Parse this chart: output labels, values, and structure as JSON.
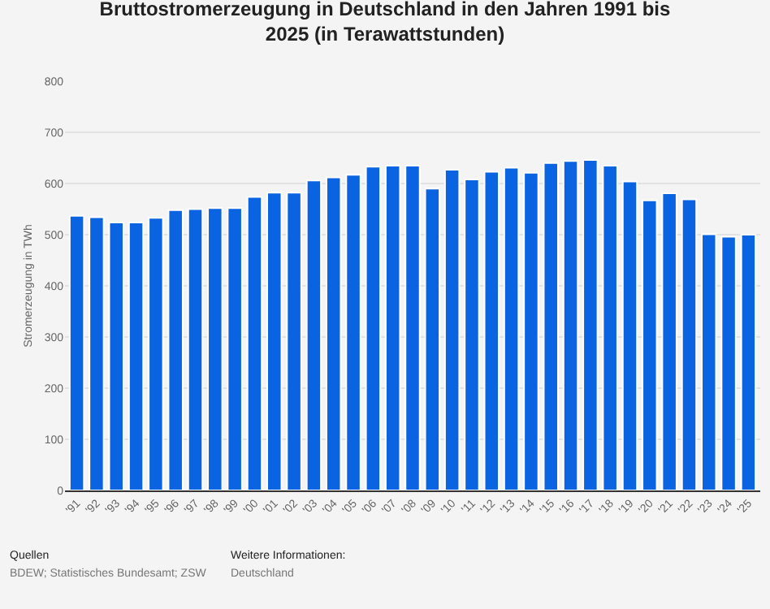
{
  "chart_data": {
    "type": "bar",
    "title": "Bruttostromerzeugung in Deutschland in den Jahren 1991 bis 2025 (in Terawattstunden)",
    "ylabel": "Stromerzeugung in TWh",
    "categories": [
      "'91",
      "'92",
      "'93",
      "'94",
      "'95",
      "'96",
      "'97",
      "'98",
      "'99",
      "'00",
      "'01",
      "'02",
      "'03",
      "'04",
      "'05",
      "'06",
      "'07",
      "'08",
      "'09",
      "'10",
      "'11",
      "'12",
      "'13",
      "'14",
      "'15",
      "'16",
      "'17",
      "'18",
      "'19",
      "'20",
      "'21",
      "'22",
      "'23",
      "'24",
      "'25"
    ],
    "values": [
      537,
      534,
      524,
      524,
      533,
      548,
      550,
      552,
      552,
      574,
      582,
      582,
      606,
      612,
      617,
      633,
      635,
      635,
      590,
      627,
      608,
      623,
      631,
      621,
      640,
      644,
      646,
      635,
      604,
      567,
      581,
      569,
      501,
      496,
      500
    ],
    "color": "#0a63e0",
    "ylim": [
      0,
      800
    ],
    "yticks": [
      0,
      100,
      200,
      300,
      400,
      500,
      600,
      700,
      800
    ],
    "grid": "y",
    "annotations": [
      "Quellen",
      "BDEW; Statistisches Bundesamt; ZSW",
      "Weitere Informationen:",
      "Deutschland"
    ]
  }
}
